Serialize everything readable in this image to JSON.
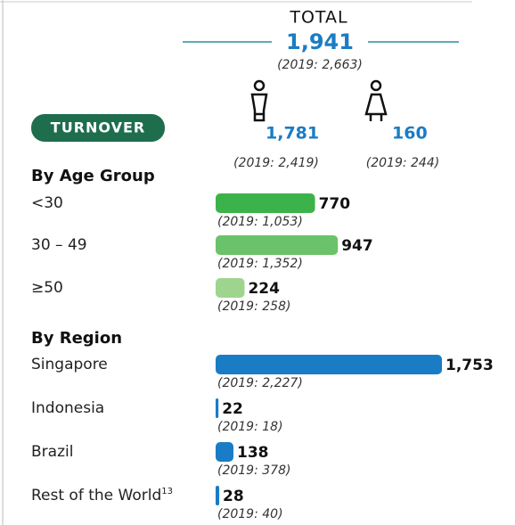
{
  "total": {
    "title": "TOTAL",
    "value": "1,941",
    "prior": "(2019: 2,663)"
  },
  "male": {
    "value": "1,781",
    "prior": "(2019: 2,419)"
  },
  "female": {
    "value": "160",
    "prior": "(2019: 244)"
  },
  "badge": "TURNOVER",
  "age_group": {
    "title": "By Age Group",
    "categories": [
      "<30",
      "30 – 49",
      "≥50"
    ],
    "values": [
      770,
      947,
      224
    ],
    "value_labels": [
      "770",
      "947",
      "224"
    ],
    "priors": [
      "(2019: 1,053)",
      "(2019: 1,352)",
      "(2019: 258)"
    ],
    "colors": [
      "#3cb34a",
      "#6cc26a",
      "#9fd48e"
    ]
  },
  "region": {
    "title": "By Region",
    "categories": [
      "Singapore",
      "Indonesia",
      "Brazil",
      "Rest of the World"
    ],
    "footnote": "13",
    "values": [
      1753,
      22,
      138,
      28
    ],
    "value_labels": [
      "1,753",
      "22",
      "138",
      "28"
    ],
    "priors": [
      "(2019: 2,227)",
      "(2019: 18)",
      "(2019: 378)",
      "(2019: 40)"
    ],
    "color": "#1a7cc4"
  }
}
